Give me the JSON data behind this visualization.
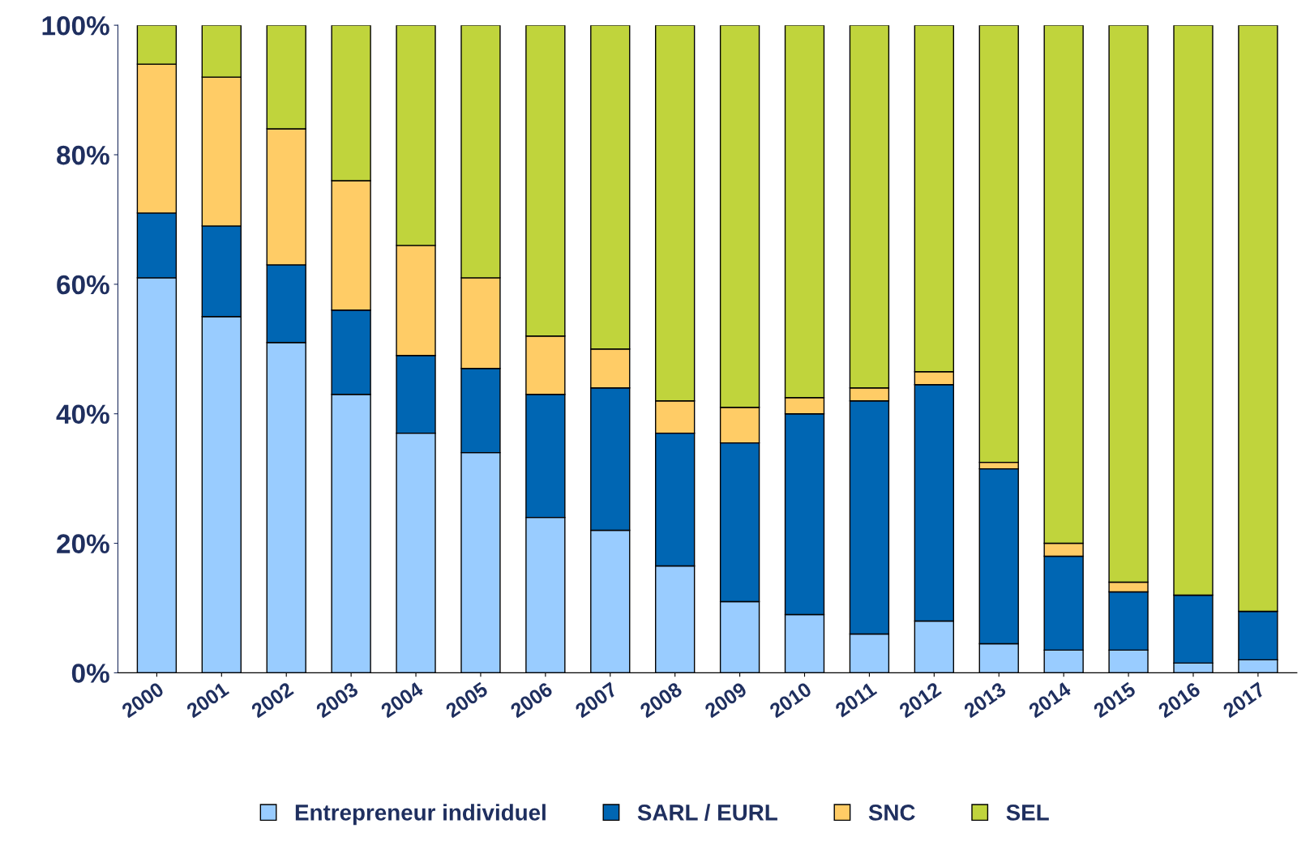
{
  "chart_data": {
    "type": "bar",
    "stacked": true,
    "categories": [
      "2000",
      "2001",
      "2002",
      "2003",
      "2004",
      "2005",
      "2006",
      "2007",
      "2008",
      "2009",
      "2010",
      "2011",
      "2012",
      "2013",
      "2014",
      "2015",
      "2016",
      "2017"
    ],
    "series": [
      {
        "name": "Entrepreneur individuel",
        "color": "#99ccff",
        "values": [
          61,
          55,
          51,
          43,
          37,
          34,
          24,
          22,
          16.5,
          11,
          9,
          6,
          8,
          4.5,
          3.5,
          3.5,
          1.5,
          2
        ]
      },
      {
        "name": "SARL / EURL",
        "color": "#0066b3",
        "values": [
          10,
          14,
          12,
          13,
          12,
          13,
          19,
          22,
          20.5,
          24.5,
          31,
          36,
          36.5,
          27,
          14.5,
          9,
          10.5,
          7.5
        ]
      },
      {
        "name": "SNC",
        "color": "#ffcc66",
        "values": [
          23,
          23,
          21,
          20,
          17,
          14,
          9,
          6,
          5,
          5.5,
          2.5,
          2,
          2,
          1,
          2,
          1.5,
          0,
          0
        ]
      },
      {
        "name": "SEL",
        "color": "#c0d43c",
        "values": [
          6,
          8,
          16,
          24,
          34,
          39,
          48,
          50,
          58,
          59,
          57.5,
          56,
          53.5,
          67.5,
          80,
          86,
          88,
          90.5
        ]
      }
    ],
    "ylim": [
      0,
      100
    ],
    "yticks": [
      {
        "value": 0,
        "label": "0%"
      },
      {
        "value": 20,
        "label": "20%"
      },
      {
        "value": 40,
        "label": "40%"
      },
      {
        "value": 60,
        "label": "60%"
      },
      {
        "value": 80,
        "label": "80%"
      },
      {
        "value": 100,
        "label": "100%"
      }
    ],
    "grid": false,
    "legend": "bottom"
  }
}
